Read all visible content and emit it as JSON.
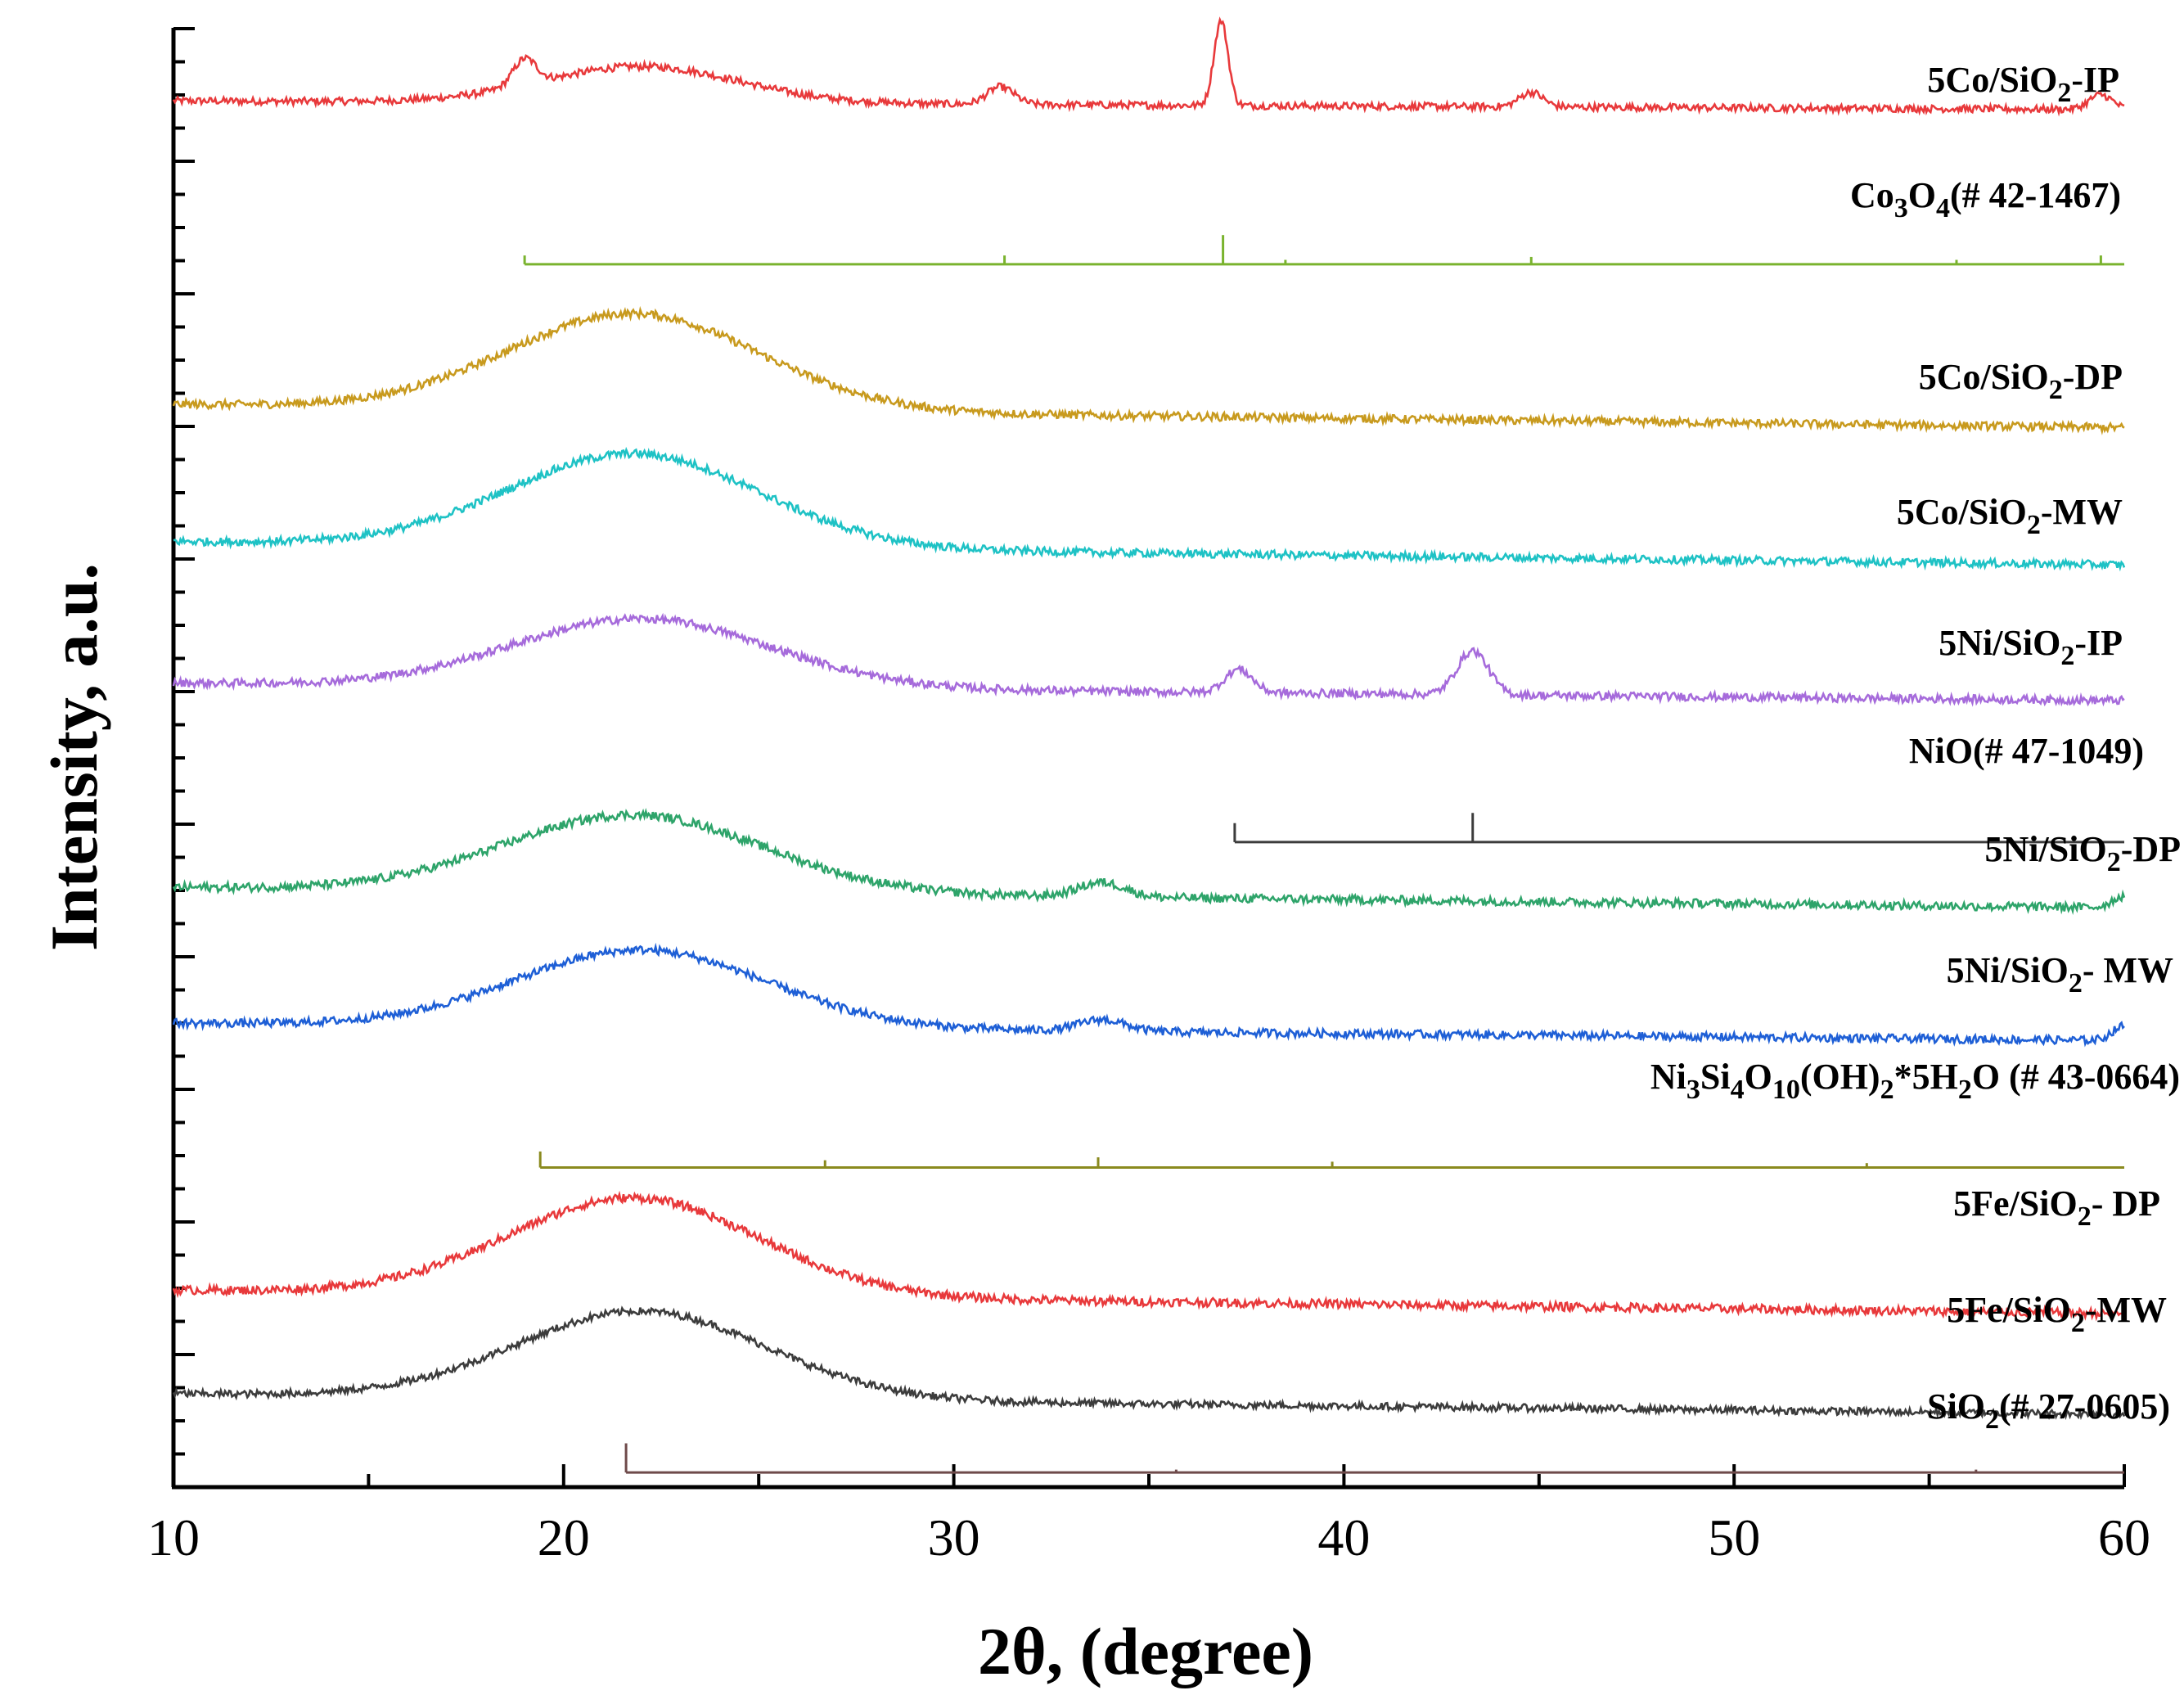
{
  "chart_data": {
    "type": "line",
    "xlabel": "2θ, (degree)",
    "ylabel": "Intensity, a.u.",
    "xlim": [
      10,
      60
    ],
    "xticks": [
      10,
      20,
      30,
      40,
      50,
      60
    ],
    "grid": false,
    "series": [
      {
        "name": "5Co/SiO2-IP",
        "label_main": "5Co/SiO",
        "label_sub": "2",
        "label_tail": "-IP",
        "color": "#e8393b",
        "baseline": 0.95,
        "peak_amp": 0.025,
        "peak_center": 22,
        "peak_width": 2.5,
        "tail_drop": 0.006,
        "sharp_peaks": [
          {
            "x": 19,
            "h": 0.018,
            "w": 0.3
          },
          {
            "x": 31.2,
            "h": 0.012,
            "w": 0.35
          },
          {
            "x": 36.85,
            "h": 0.058,
            "w": 0.18
          },
          {
            "x": 44.8,
            "h": 0.01,
            "w": 0.3
          },
          {
            "x": 59.4,
            "h": 0.01,
            "w": 0.3
          }
        ],
        "noise": 0.0025
      },
      {
        "name": "5Co/SiO2-DP",
        "label_main": "5Co/SiO",
        "label_sub": "2",
        "label_tail": "-DP",
        "color": "#c89a1e",
        "baseline": 0.742,
        "peak_amp": 0.066,
        "peak_center": 21.8,
        "peak_width": 3.2,
        "tail_drop": 0.016,
        "sharp_peaks": [],
        "noise": 0.0028
      },
      {
        "name": "5Co/SiO2-MW",
        "label_main": "5Co/SiO",
        "label_sub": "2",
        "label_tail": "-MW",
        "color": "#1ec2c5",
        "baseline": 0.648,
        "peak_amp": 0.064,
        "peak_center": 21.8,
        "peak_width": 3.2,
        "tail_drop": 0.016,
        "sharp_peaks": [],
        "noise": 0.0028
      },
      {
        "name": "5Ni/SiO2-IP",
        "label_main": "5Ni/SiO",
        "label_sub": "2",
        "label_tail": "-IP",
        "color": "#a66bdb",
        "baseline": 0.551,
        "peak_amp": 0.047,
        "peak_center": 22,
        "peak_width": 3.3,
        "tail_drop": 0.012,
        "sharp_peaks": [
          {
            "x": 37.3,
            "h": 0.016,
            "w": 0.35
          },
          {
            "x": 43.3,
            "h": 0.03,
            "w": 0.4
          }
        ],
        "noise": 0.0028
      },
      {
        "name": "5Ni/SiO2-DP",
        "label_main": "5Ni/SiO",
        "label_sub": "2",
        "label_tail": "-DP",
        "color": "#2ea46a",
        "baseline": 0.411,
        "peak_amp": 0.053,
        "peak_center": 21.8,
        "peak_width": 3.3,
        "tail_drop": 0.014,
        "sharp_peaks": [
          {
            "x": 33.8,
            "h": 0.01,
            "w": 0.6
          },
          {
            "x": 60,
            "h": 0.008,
            "w": 0.3
          }
        ],
        "noise": 0.003
      },
      {
        "name": "5Ni/SiO2- MW",
        "label_main": "5Ni/SiO",
        "label_sub": "2",
        "label_tail": "- MW",
        "color": "#1e5fd6",
        "baseline": 0.318,
        "peak_amp": 0.053,
        "peak_center": 22,
        "peak_width": 3.2,
        "tail_drop": 0.012,
        "sharp_peaks": [
          {
            "x": 33.8,
            "h": 0.008,
            "w": 0.6
          },
          {
            "x": 60,
            "h": 0.01,
            "w": 0.3
          }
        ],
        "noise": 0.0028
      },
      {
        "name": "5Fe/SiO2- DP",
        "label_main": "5Fe/SiO",
        "label_sub": "2",
        "label_tail": "- DP",
        "color": "#e8393b",
        "baseline": 0.135,
        "peak_amp": 0.067,
        "peak_center": 21.8,
        "peak_width": 3.2,
        "tail_drop": 0.016,
        "sharp_peaks": [],
        "noise": 0.003
      },
      {
        "name": "5Fe/SiO2-MW",
        "label_main": "5Fe/SiO",
        "label_sub": "2",
        "label_tail": "-MW",
        "color": "#3c3c3c",
        "baseline": 0.064,
        "peak_amp": 0.06,
        "peak_center": 22,
        "peak_width": 3.2,
        "tail_drop": 0.014,
        "sharp_peaks": [],
        "noise": 0.0025
      }
    ],
    "references": [
      {
        "name": "Co3O4(# 42-1467)",
        "color": "#7ab32e",
        "baseline": 0.838,
        "x_start": 19,
        "x_end": 60,
        "sticks": [
          {
            "x": 19,
            "h": 0.006
          },
          {
            "x": 31.3,
            "h": 0.006
          },
          {
            "x": 36.9,
            "h": 0.02
          },
          {
            "x": 38.5,
            "h": 0.003
          },
          {
            "x": 44.8,
            "h": 0.005
          },
          {
            "x": 55.7,
            "h": 0.003
          },
          {
            "x": 59.4,
            "h": 0.006
          }
        ]
      },
      {
        "name": "NiO(# 47-1049)",
        "color": "#3c3c3c",
        "baseline": 0.442,
        "x_start": 37.2,
        "x_end": 60,
        "sticks": [
          {
            "x": 37.2,
            "h": 0.013
          },
          {
            "x": 43.3,
            "h": 0.02
          }
        ]
      },
      {
        "name": "Ni3Si4O10(OH)2*5H2O (# 43-0664)",
        "color": "#8a8a1e",
        "baseline": 0.219,
        "x_start": 19.4,
        "x_end": 60,
        "sticks": [
          {
            "x": 19.4,
            "h": 0.011
          },
          {
            "x": 26.7,
            "h": 0.005
          },
          {
            "x": 33.7,
            "h": 0.007
          },
          {
            "x": 39.7,
            "h": 0.004
          },
          {
            "x": 53.4,
            "h": 0.003
          }
        ]
      },
      {
        "name": "SiO2(# 27-0605)",
        "color": "#6e4a4a",
        "baseline": 0.01,
        "x_start": 21.6,
        "x_end": 60,
        "sticks": [
          {
            "x": 21.6,
            "h": 0.02
          },
          {
            "x": 35.7,
            "h": 0.002
          },
          {
            "x": 56.2,
            "h": 0.002
          }
        ]
      }
    ],
    "ref_labels": {
      "co3o4": {
        "a": "Co",
        "a_sub": "3",
        "b": "O",
        "b_sub": "4",
        "tail": "(# 42-1467)"
      },
      "nio": {
        "text": "NiO(# 47-1049)"
      },
      "nisi": {
        "a": "Ni",
        "a_sub": "3",
        "b": "Si",
        "b_sub": "4",
        "c": "O",
        "c_sub": "10",
        "d": "(OH)",
        "d_sub": "2",
        "e": "*5H",
        "e_sub": "2",
        "tail": "O (# 43-0664)"
      },
      "sio2": {
        "a": "SiO",
        "a_sub": "2",
        "tail": "(# 27-0605)"
      }
    }
  }
}
